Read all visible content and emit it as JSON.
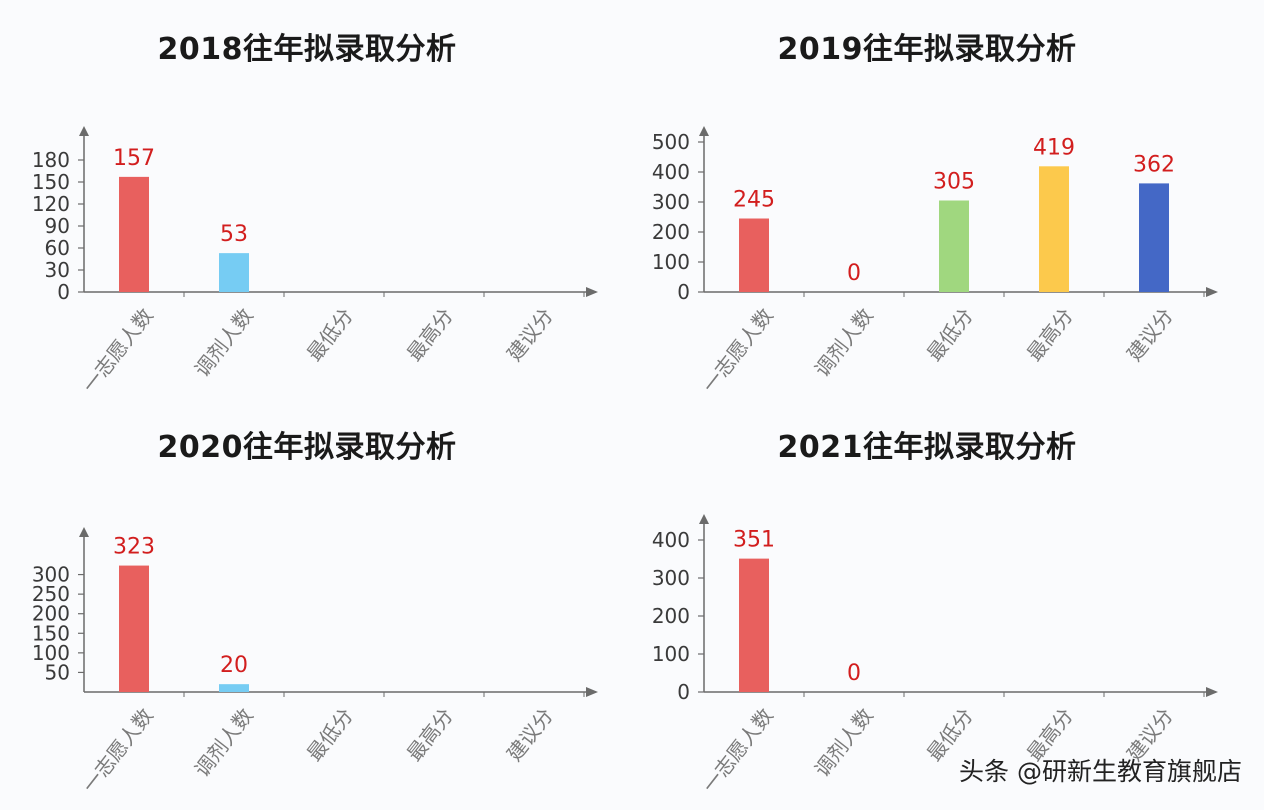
{
  "watermark": "头条 @研新生教育旗舰店",
  "colors": {
    "axis": "#6b6b6b",
    "tick_text": "#3a3a3a",
    "category_text": "#7a7a7a",
    "value_label": "#d21e1e",
    "title": "#1a1a1a",
    "background": "#fafbfd"
  },
  "chart_data": [
    {
      "type": "bar",
      "title": "2018往年拟录取分析",
      "categories": [
        "一志愿人数",
        "调剂人数",
        "最低分",
        "最高分",
        "建议分"
      ],
      "values": [
        157,
        53,
        null,
        null,
        null
      ],
      "data_labels": [
        "157",
        "53",
        "",
        "",
        ""
      ],
      "bar_colors": [
        "#e8605e",
        "#76ccf3",
        "#a0d77f",
        "#fcc94c",
        "#4468c6"
      ],
      "yticks": [
        0,
        30,
        60,
        90,
        120,
        150,
        180
      ],
      "ylim": [
        0,
        180
      ],
      "xlabel": "",
      "ylabel": "",
      "grid": false,
      "legend": "none"
    },
    {
      "type": "bar",
      "title": "2019往年拟录取分析",
      "categories": [
        "一志愿人数",
        "调剂人数",
        "最低分",
        "最高分",
        "建议分"
      ],
      "values": [
        245,
        0,
        305,
        419,
        362
      ],
      "data_labels": [
        "245",
        "0",
        "305",
        "419",
        "362"
      ],
      "bar_colors": [
        "#e8605e",
        "#76ccf3",
        "#a0d77f",
        "#fcc94c",
        "#4468c6"
      ],
      "yticks": [
        0,
        100,
        200,
        300,
        400,
        500
      ],
      "ylim": [
        0,
        500
      ],
      "xlabel": "",
      "ylabel": "",
      "grid": false,
      "legend": "none"
    },
    {
      "type": "bar",
      "title": "2020往年拟录取分析",
      "categories": [
        "一志愿人数",
        "调剂人数",
        "最低分",
        "最高分",
        "建议分"
      ],
      "values": [
        323,
        20,
        null,
        null,
        null
      ],
      "data_labels": [
        "323",
        "20",
        "",
        "",
        ""
      ],
      "bar_colors": [
        "#e8605e",
        "#76ccf3",
        "#a0d77f",
        "#fcc94c",
        "#4468c6"
      ],
      "yticks": [
        50,
        100,
        150,
        200,
        250,
        300
      ],
      "ylim": [
        0,
        350
      ],
      "xlabel": "",
      "ylabel": "",
      "grid": false,
      "legend": "none"
    },
    {
      "type": "bar",
      "title": "2021往年拟录取分析",
      "categories": [
        "一志愿人数",
        "调剂人数",
        "最低分",
        "最高分",
        "建议分"
      ],
      "values": [
        351,
        0,
        null,
        null,
        null
      ],
      "data_labels": [
        "351",
        "0",
        "",
        "",
        ""
      ],
      "bar_colors": [
        "#e8605e",
        "#76ccf3",
        "#a0d77f",
        "#fcc94c",
        "#4468c6"
      ],
      "yticks": [
        0,
        100,
        200,
        300,
        400
      ],
      "ylim": [
        0,
        400
      ],
      "xlabel": "",
      "ylabel": "",
      "grid": false,
      "legend": "none"
    }
  ]
}
